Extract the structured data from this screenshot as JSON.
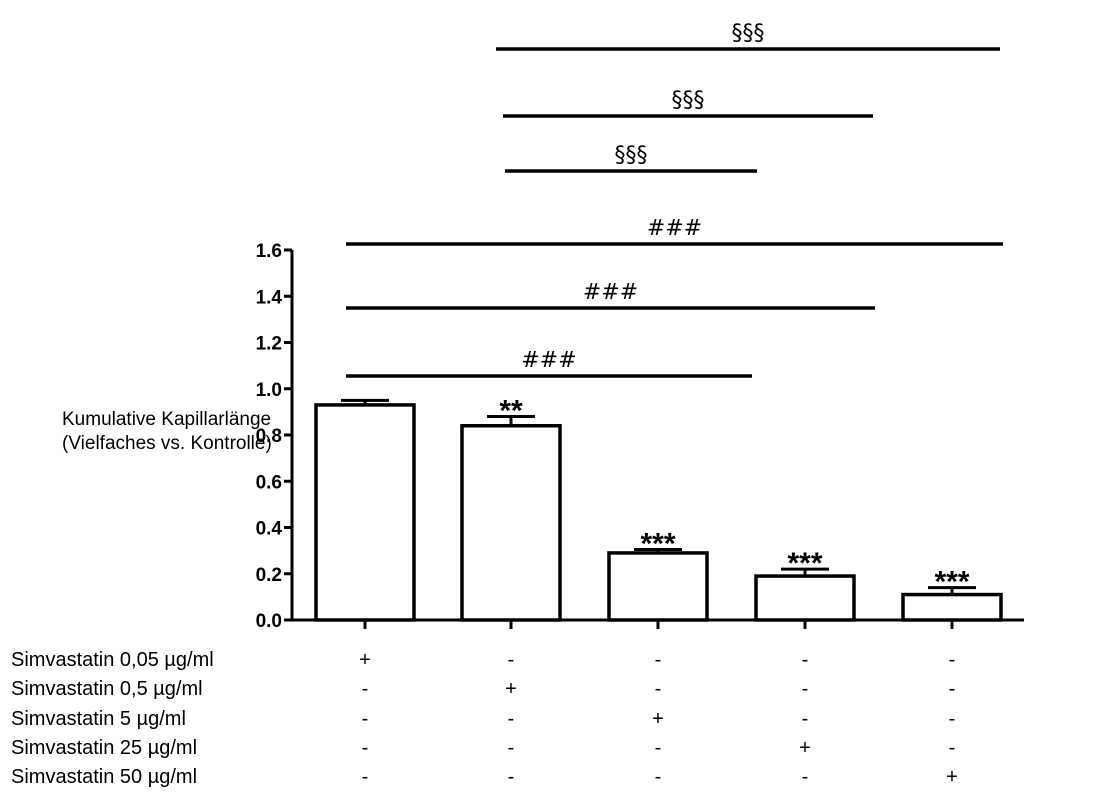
{
  "chart_data": {
    "type": "bar",
    "ylabel_lines": [
      "Kumulative Kapillarlänge",
      "(Vielfaches vs. Kontrolle)"
    ],
    "ylim": [
      0.0,
      1.6
    ],
    "yticks": [
      "0.0",
      "0.2",
      "0.4",
      "0.6",
      "0.8",
      "1.0",
      "1.2",
      "1.4",
      "1.6"
    ],
    "values": [
      0.93,
      0.84,
      0.29,
      0.19,
      0.11
    ],
    "errors": [
      0.02,
      0.04,
      0.015,
      0.03,
      0.03
    ],
    "bar_annotations": [
      "",
      "**",
      "***",
      "***",
      "***"
    ],
    "treatments": [
      {
        "label": "Simvastatin 0,05 µg/ml",
        "signs": [
          "+",
          "-",
          "-",
          "-",
          "-"
        ]
      },
      {
        "label": "Simvastatin 0,5 µg/ml",
        "signs": [
          "-",
          "+",
          "-",
          "-",
          "-"
        ]
      },
      {
        "label": "Simvastatin 5 µg/ml",
        "signs": [
          "-",
          "-",
          "+",
          "-",
          "-"
        ]
      },
      {
        "label": "Simvastatin 25 µg/ml",
        "signs": [
          "-",
          "-",
          "-",
          "+",
          "-"
        ]
      },
      {
        "label": "Simvastatin 50 µg/ml",
        "signs": [
          "-",
          "-",
          "-",
          "-",
          "+"
        ]
      }
    ],
    "comparisons": [
      {
        "from": 1,
        "to": 4,
        "label": "§§§"
      },
      {
        "from": 1,
        "to": 3,
        "label": "§§§"
      },
      {
        "from": 1,
        "to": 2,
        "label": "§§§"
      },
      {
        "from": 0,
        "to": 4,
        "label": "###"
      },
      {
        "from": 0,
        "to": 3,
        "label": "###"
      },
      {
        "from": 0,
        "to": 2,
        "label": "###"
      }
    ]
  }
}
